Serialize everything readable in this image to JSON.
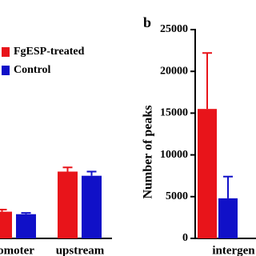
{
  "chart_data": [
    {
      "type": "bar",
      "categories": [
        "omoter",
        "upstream"
      ],
      "series": [
        {
          "name": "FgESP-treated",
          "color": "#e8141a",
          "values": [
            3200,
            8000
          ],
          "errors": [
            250,
            500
          ]
        },
        {
          "name": "Control",
          "color": "#1010c8",
          "values": [
            2900,
            7500
          ],
          "errors": [
            150,
            500
          ]
        }
      ],
      "ylim": [
        0,
        25000
      ]
    },
    {
      "type": "bar",
      "panel_label": "b",
      "ylabel": "Number of peaks",
      "categories": [
        "intergen"
      ],
      "series": [
        {
          "color": "#e8141a",
          "values": [
            15500
          ],
          "errors": [
            6700
          ]
        },
        {
          "color": "#1010c8",
          "values": [
            4800
          ],
          "errors": [
            2600
          ]
        }
      ],
      "ylim": [
        0,
        25000
      ],
      "yticks": [
        0,
        5000,
        10000,
        15000,
        20000,
        25000
      ]
    }
  ]
}
